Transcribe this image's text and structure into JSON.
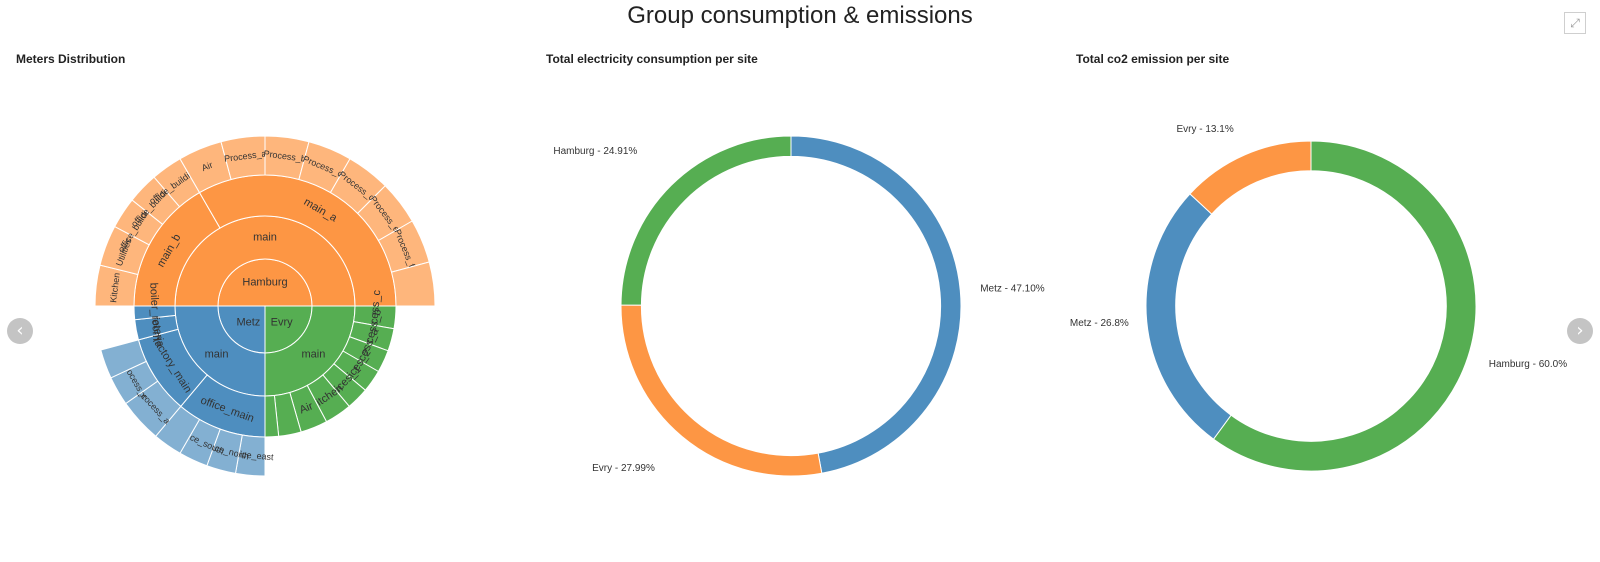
{
  "page": {
    "title": "Group consumption & emissions"
  },
  "panels": {
    "meters_title": "Meters Distribution",
    "electricity_title": "Total electricity consumption per site",
    "co2_title": "Total co2 emission per site"
  },
  "controls": {
    "prev_icon": "chevron-left-icon",
    "next_icon": "chevron-right-icon",
    "fullscreen_icon": "expand-icon"
  },
  "chart_data": [
    {
      "type": "sunburst",
      "title": "Meters Distribution",
      "colors": {
        "Hamburg": "#fd9644",
        "Evry": "#56ae52",
        "Metz": "#4e8ebf"
      },
      "hierarchy": {
        "name": "",
        "children": [
          {
            "name": "Hamburg",
            "value": 18,
            "children": [
              {
                "name": "main",
                "value": 18,
                "children": [
                  {
                    "name": "main_b",
                    "value": 6,
                    "children": [
                      {
                        "name": "Kitchen",
                        "value": 1.3
                      },
                      {
                        "name": "Utilities",
                        "value": 1.3
                      },
                      {
                        "name": "office_building_a",
                        "value": 1
                      },
                      {
                        "name": "office_building_b",
                        "value": 1
                      },
                      {
                        "name": "office_building_c",
                        "value": 1
                      }
                    ]
                  },
                  {
                    "name": "main_a",
                    "value": 12,
                    "children": [
                      {
                        "name": "Air",
                        "value": 1.5
                      },
                      {
                        "name": "Process_a",
                        "value": 1.5
                      },
                      {
                        "name": "Process_b",
                        "value": 1.5
                      },
                      {
                        "name": "Process_c",
                        "value": 1.5
                      },
                      {
                        "name": "Process_d",
                        "value": 1.5
                      },
                      {
                        "name": "Process_e",
                        "value": 1.5
                      },
                      {
                        "name": "Process_f",
                        "value": 1.5
                      },
                      {
                        "name": "",
                        "value": 1.5
                      }
                    ]
                  }
                ]
              }
            ]
          },
          {
            "name": "Evry",
            "value": 9,
            "children": [
              {
                "name": "main",
                "value": 9,
                "children": [
                  {
                    "name": "Process_c",
                    "value": 1
                  },
                  {
                    "name": "Process_b",
                    "value": 1
                  },
                  {
                    "name": "Process_a",
                    "value": 1
                  },
                  {
                    "name": "Offices_2",
                    "value": 1
                  },
                  {
                    "name": "Offices_1",
                    "value": 1
                  },
                  {
                    "name": "Kitchen",
                    "value": 1.2
                  },
                  {
                    "name": "Air",
                    "value": 1.2
                  },
                  {
                    "name": "",
                    "value": 1
                  },
                  {
                    "name": "",
                    "value": 0.6
                  }
                ]
              }
            ]
          },
          {
            "name": "Metz",
            "value": 9,
            "children": [
              {
                "name": "main",
                "value": 9,
                "children": [
                  {
                    "name": "office_main",
                    "value": 4,
                    "children": [
                      {
                        "name": "office_east",
                        "value": 1
                      },
                      {
                        "name": "office_north",
                        "value": 1
                      },
                      {
                        "name": "office_south",
                        "value": 1
                      },
                      {
                        "name": "",
                        "value": 1
                      }
                    ]
                  },
                  {
                    "name": "factory_main",
                    "value": 3.5,
                    "children": [
                      {
                        "name": "process_a",
                        "value": 1.5
                      },
                      {
                        "name": "process_c",
                        "value": 1
                      },
                      {
                        "name": "",
                        "value": 1
                      }
                    ]
                  },
                  {
                    "name": "cafeteria",
                    "value": 0.9
                  },
                  {
                    "name": "boiler_room",
                    "value": 0.6
                  }
                ]
              }
            ]
          }
        ]
      }
    },
    {
      "type": "pie",
      "hole": 0.88,
      "title": "Total electricity consumption per site",
      "labels": [
        "Metz",
        "Evry",
        "Hamburg"
      ],
      "values": [
        47.1,
        27.99,
        24.91
      ],
      "text": [
        "Metz - 47.10%",
        "Evry - 27.99%",
        "Hamburg - 24.91%"
      ],
      "colors": [
        "#4e8ebf",
        "#fd9644",
        "#56ae52"
      ]
    },
    {
      "type": "pie",
      "hole": 0.82,
      "title": "Total co2 emission per site",
      "labels": [
        "Hamburg",
        "Metz",
        "Evry"
      ],
      "values": [
        60.0,
        26.8,
        13.1
      ],
      "text": [
        "Hamburg - 60.0%",
        "Metz - 26.8%",
        "Evry - 13.1%"
      ],
      "colors": [
        "#56ae52",
        "#4e8ebf",
        "#fd9644"
      ]
    }
  ]
}
